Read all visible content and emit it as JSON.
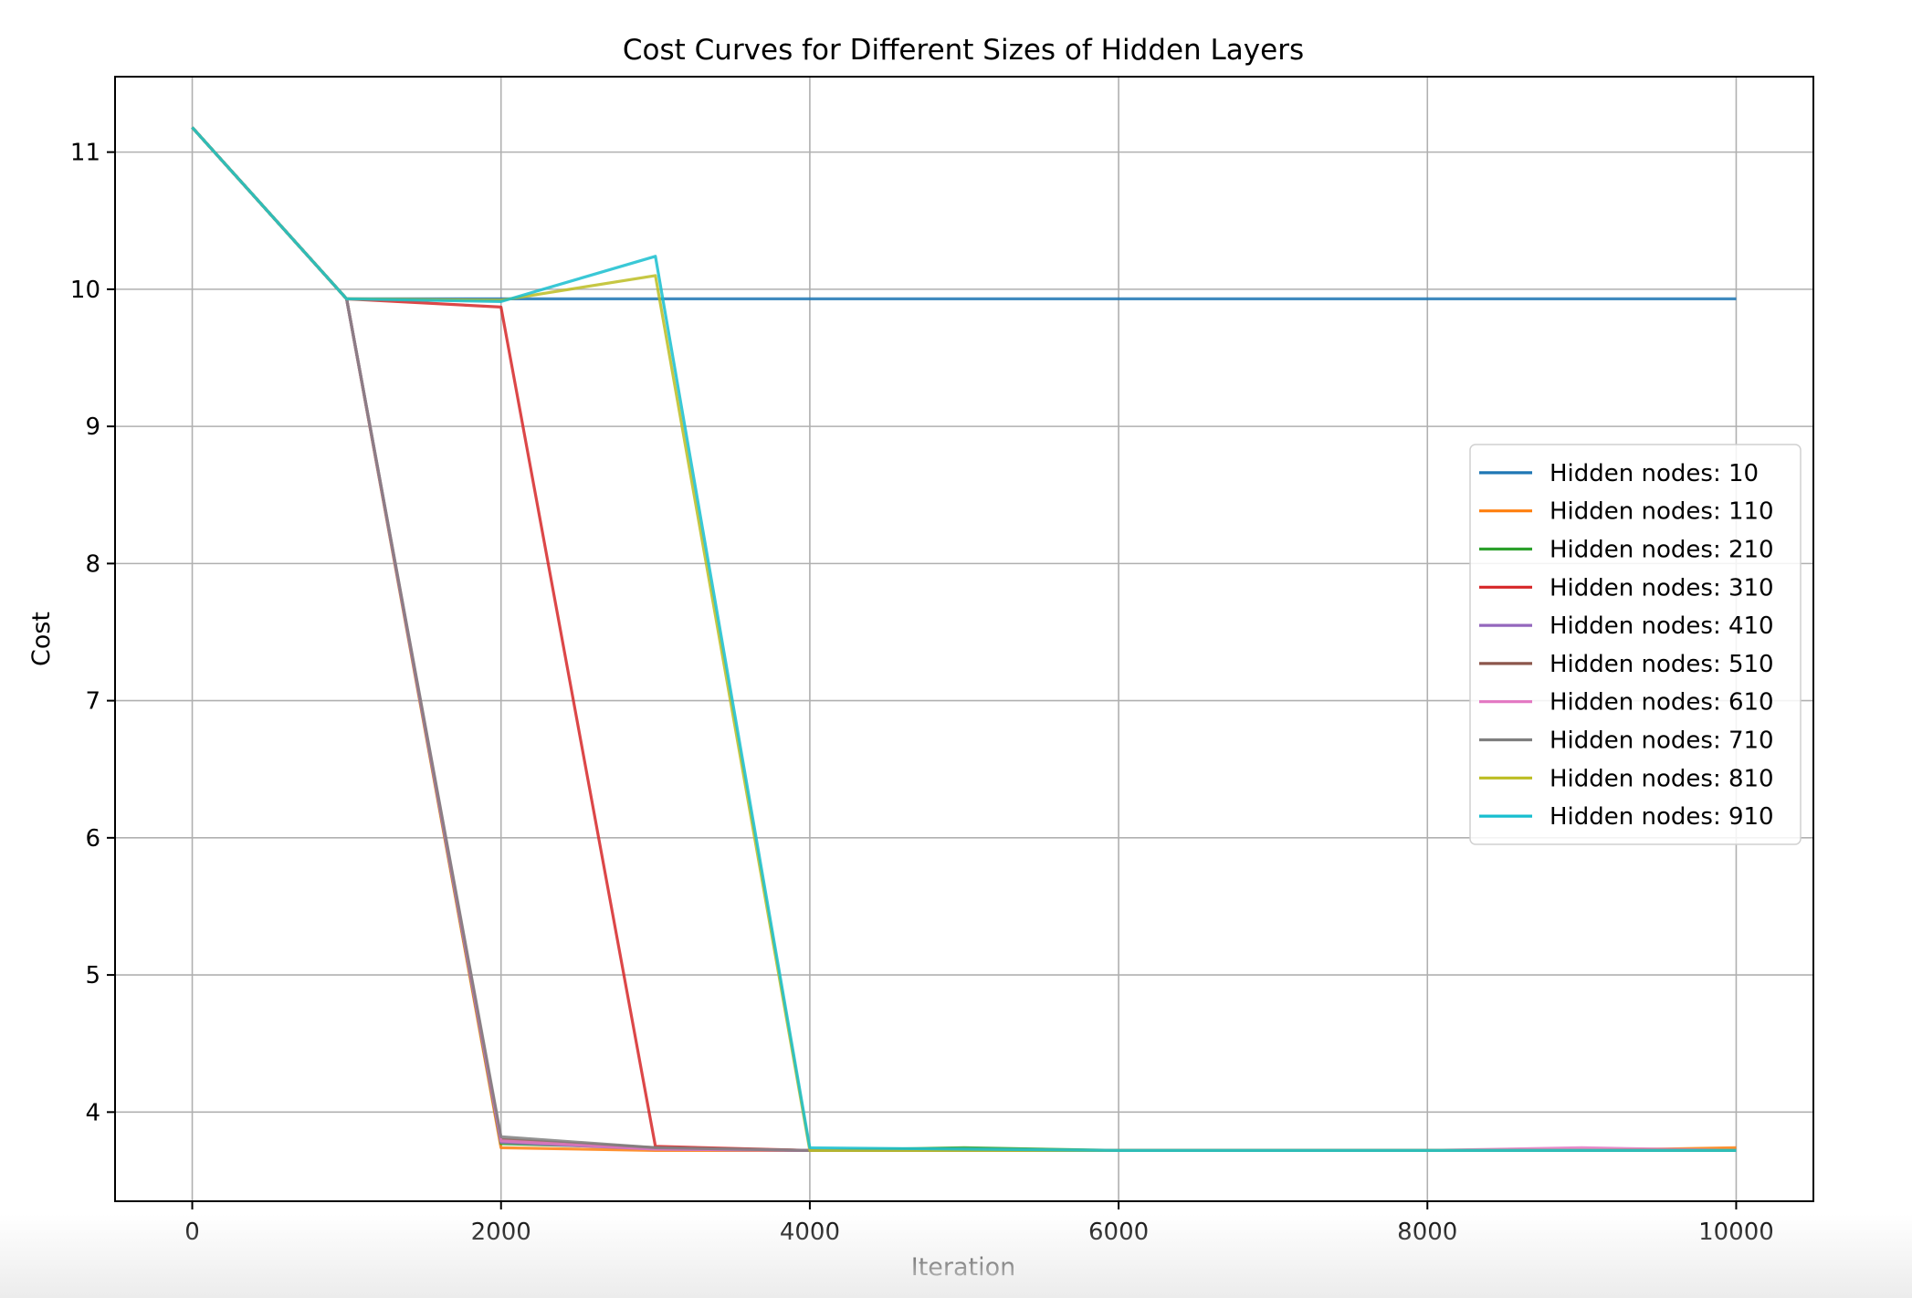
{
  "chart_data": {
    "type": "line",
    "title": "Cost Curves for Different Sizes of Hidden Layers",
    "xlabel": "Iteration",
    "ylabel": "Cost",
    "xlim": [
      -500,
      10500
    ],
    "ylim": [
      3.35,
      11.55
    ],
    "xticks": [
      0,
      2000,
      4000,
      6000,
      8000,
      10000
    ],
    "xtick_labels": [
      "0",
      "2000",
      "4000",
      "6000",
      "8000",
      "10000"
    ],
    "yticks": [
      4,
      5,
      6,
      7,
      8,
      9,
      10,
      11
    ],
    "ytick_labels": [
      "4",
      "5",
      "6",
      "7",
      "8",
      "9",
      "10",
      "11"
    ],
    "grid": true,
    "legend_position": "center-right",
    "x": [
      0,
      1000,
      2000,
      3000,
      4000,
      5000,
      6000,
      7000,
      8000,
      9000,
      10000
    ],
    "series": [
      {
        "name": "Hidden nodes: 10",
        "color": "#1f77b4",
        "values": [
          11.18,
          9.93,
          9.93,
          9.93,
          9.93,
          9.93,
          9.93,
          9.93,
          9.93,
          9.93,
          9.93
        ]
      },
      {
        "name": "Hidden nodes: 110",
        "color": "#ff7f0e",
        "values": [
          11.18,
          9.93,
          3.74,
          3.72,
          3.72,
          3.72,
          3.72,
          3.72,
          3.72,
          3.72,
          3.74
        ]
      },
      {
        "name": "Hidden nodes: 210",
        "color": "#2ca02c",
        "values": [
          11.18,
          9.93,
          3.77,
          3.74,
          3.72,
          3.74,
          3.72,
          3.72,
          3.72,
          3.72,
          3.72
        ]
      },
      {
        "name": "Hidden nodes: 310",
        "color": "#d62728",
        "values": [
          11.18,
          9.93,
          9.87,
          3.75,
          3.72,
          3.72,
          3.72,
          3.72,
          3.72,
          3.72,
          3.72
        ]
      },
      {
        "name": "Hidden nodes: 410",
        "color": "#9467bd",
        "values": [
          11.18,
          9.93,
          3.78,
          3.73,
          3.72,
          3.72,
          3.72,
          3.72,
          3.72,
          3.72,
          3.72
        ]
      },
      {
        "name": "Hidden nodes: 510",
        "color": "#8c564b",
        "values": [
          11.18,
          9.93,
          3.8,
          3.74,
          3.72,
          3.72,
          3.72,
          3.72,
          3.72,
          3.72,
          3.72
        ]
      },
      {
        "name": "Hidden nodes: 610",
        "color": "#e377c2",
        "values": [
          11.18,
          9.93,
          3.79,
          3.73,
          3.72,
          3.72,
          3.72,
          3.72,
          3.72,
          3.74,
          3.72
        ]
      },
      {
        "name": "Hidden nodes: 710",
        "color": "#7f7f7f",
        "values": [
          11.18,
          9.93,
          3.82,
          3.74,
          3.72,
          3.72,
          3.72,
          3.72,
          3.72,
          3.72,
          3.72
        ]
      },
      {
        "name": "Hidden nodes: 810",
        "color": "#bcbd22",
        "values": [
          11.18,
          9.93,
          9.92,
          10.1,
          3.72,
          3.72,
          3.72,
          3.72,
          3.72,
          3.72,
          3.72
        ]
      },
      {
        "name": "Hidden nodes: 910",
        "color": "#17becf",
        "values": [
          11.18,
          9.93,
          9.91,
          10.24,
          3.74,
          3.73,
          3.72,
          3.72,
          3.72,
          3.72,
          3.72
        ]
      }
    ]
  }
}
